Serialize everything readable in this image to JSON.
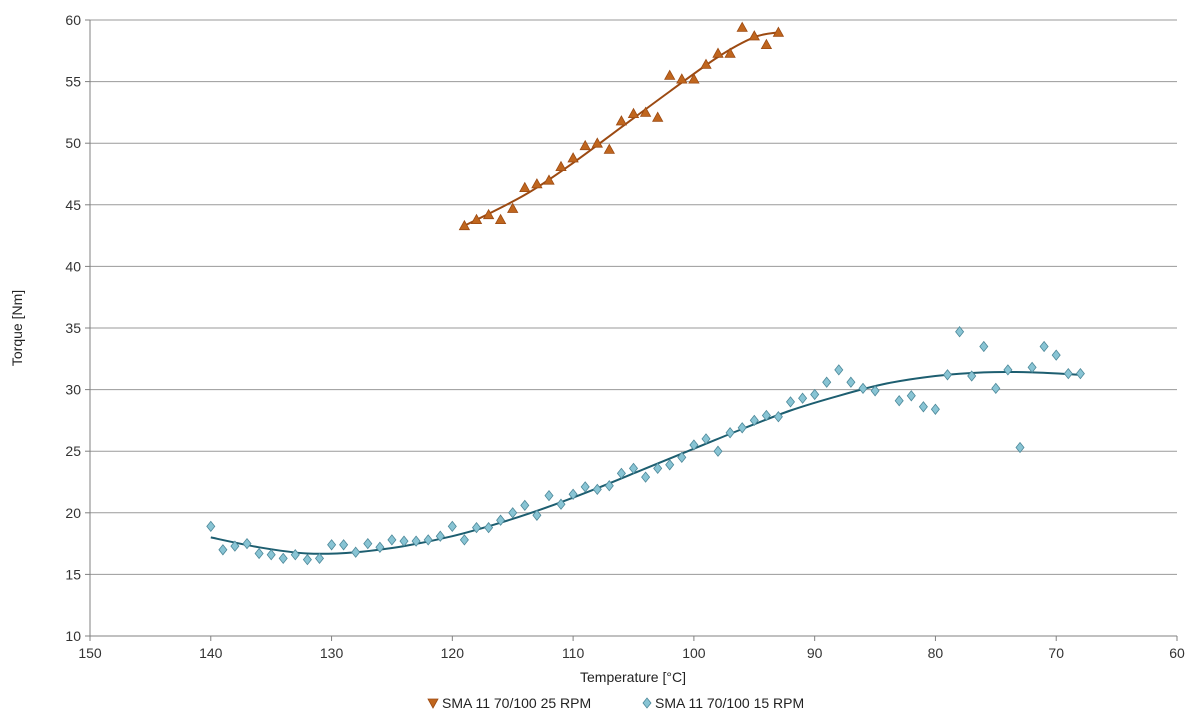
{
  "chart_data": {
    "type": "scatter",
    "title": "",
    "xlabel": "Temperature [°C]",
    "ylabel": "Torque [Nm]",
    "xlim": [
      150,
      60
    ],
    "ylim": [
      10,
      60
    ],
    "x_reversed": true,
    "x_ticks": [
      "150",
      "140",
      "130",
      "120",
      "110",
      "100",
      "90",
      "80",
      "70",
      "60"
    ],
    "y_ticks": [
      "10",
      "15",
      "20",
      "25",
      "30",
      "35",
      "40",
      "45",
      "50",
      "55",
      "60"
    ],
    "grid": "horizontal",
    "legend_position": "bottom",
    "series": [
      {
        "name": "SMA 11 70/100 25 RPM",
        "marker": "triangle",
        "color": "#c0661e",
        "trend_color": "#9c4a12",
        "x": [
          119,
          118,
          117,
          116,
          115,
          114,
          113,
          112,
          111,
          110,
          109,
          108,
          107,
          106,
          105,
          104,
          103,
          102,
          101,
          100,
          99,
          98,
          97,
          96,
          95,
          94,
          93
        ],
        "y": [
          43.3,
          43.8,
          44.2,
          43.8,
          44.7,
          46.4,
          46.7,
          47.0,
          48.1,
          48.8,
          49.8,
          50.0,
          49.5,
          51.8,
          52.4,
          52.5,
          52.1,
          55.5,
          55.2,
          55.2,
          56.4,
          57.3,
          57.3,
          59.4,
          58.7,
          58.0,
          59.0
        ],
        "trend": {
          "x": [
            119,
            114,
            110,
            106,
            102,
            98,
            95,
            93
          ],
          "y": [
            43.3,
            45.8,
            48.4,
            51.3,
            54.2,
            57.0,
            58.6,
            59.0
          ]
        }
      },
      {
        "name": "SMA 11 70/100 15 RPM",
        "marker": "diamond",
        "color": "#88c4d4",
        "trend_color": "#1d5e70",
        "x": [
          140,
          139,
          138,
          137,
          136,
          135,
          134,
          133,
          132,
          131,
          130,
          129,
          128,
          127,
          126,
          125,
          124,
          123,
          122,
          121,
          120,
          119,
          118,
          117,
          116,
          115,
          114,
          113,
          112,
          111,
          110,
          109,
          108,
          107,
          106,
          105,
          104,
          103,
          102,
          101,
          100,
          99,
          98,
          97,
          96,
          95,
          94,
          93,
          92,
          91,
          90,
          89,
          88,
          87,
          86,
          85,
          83,
          82,
          81,
          80,
          79,
          78,
          77,
          76,
          75,
          74,
          73,
          72,
          71,
          70,
          69,
          68
        ],
        "y": [
          18.9,
          17.0,
          17.3,
          17.5,
          16.7,
          16.6,
          16.3,
          16.6,
          16.2,
          16.3,
          17.4,
          17.4,
          16.8,
          17.5,
          17.2,
          17.8,
          17.7,
          17.7,
          17.8,
          18.1,
          18.9,
          17.8,
          18.8,
          18.8,
          19.4,
          20.0,
          20.6,
          19.8,
          21.4,
          20.7,
          21.5,
          22.1,
          21.9,
          22.2,
          23.2,
          23.6,
          22.9,
          23.6,
          23.9,
          24.5,
          25.5,
          26.0,
          25.0,
          26.5,
          26.9,
          27.5,
          27.9,
          27.8,
          29.0,
          29.3,
          29.6,
          30.6,
          31.6,
          30.6,
          30.1,
          29.9,
          29.1,
          29.5,
          28.6,
          28.4,
          31.2,
          34.7,
          31.1,
          33.5,
          30.1,
          31.6,
          25.3,
          31.8,
          33.5,
          32.8,
          31.3,
          31.3
        ],
        "trend": {
          "x": [
            140,
            136,
            132,
            128,
            124,
            120,
            116,
            112,
            108,
            104,
            100,
            96,
            92,
            88,
            84,
            80,
            76,
            72,
            68
          ],
          "y": [
            18.0,
            17.2,
            16.7,
            16.8,
            17.3,
            18.1,
            19.2,
            20.5,
            22.0,
            23.6,
            25.2,
            26.8,
            28.3,
            29.5,
            30.5,
            31.1,
            31.4,
            31.4,
            31.2
          ]
        }
      }
    ]
  }
}
